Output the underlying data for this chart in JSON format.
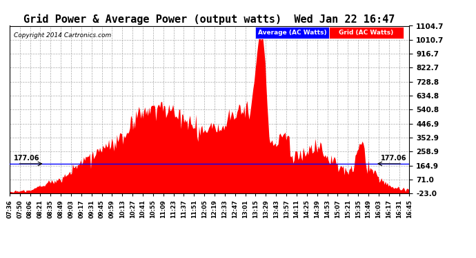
{
  "title": "Grid Power & Average Power (output watts)  Wed Jan 22 16:47",
  "copyright": "Copyright 2014 Cartronics.com",
  "legend_avg_label": "Average (AC Watts)",
  "legend_grid_label": "Grid (AC Watts)",
  "avg_value": 177.06,
  "yticks_right": [
    1104.7,
    1010.7,
    916.7,
    822.7,
    728.8,
    634.8,
    540.8,
    446.9,
    352.9,
    258.9,
    164.9,
    71.0,
    -23.0
  ],
  "ymin": -23.0,
  "ymax": 1104.7,
  "background_color": "#ffffff",
  "grid_color": "#aaaaaa",
  "area_color": "#ff0000",
  "avg_line_color": "#0000ff",
  "title_fontsize": 11,
  "xtick_labels": [
    "07:36",
    "07:50",
    "08:06",
    "08:21",
    "08:35",
    "08:49",
    "09:03",
    "09:17",
    "09:31",
    "09:45",
    "09:59",
    "10:13",
    "10:27",
    "10:41",
    "10:55",
    "11:09",
    "11:23",
    "11:37",
    "11:51",
    "12:05",
    "12:19",
    "12:33",
    "12:47",
    "13:01",
    "13:15",
    "13:29",
    "13:43",
    "13:57",
    "14:11",
    "14:25",
    "14:39",
    "14:53",
    "15:07",
    "15:21",
    "15:35",
    "15:49",
    "16:03",
    "16:17",
    "16:31",
    "16:45"
  ],
  "n_points": 400,
  "seed": 10
}
